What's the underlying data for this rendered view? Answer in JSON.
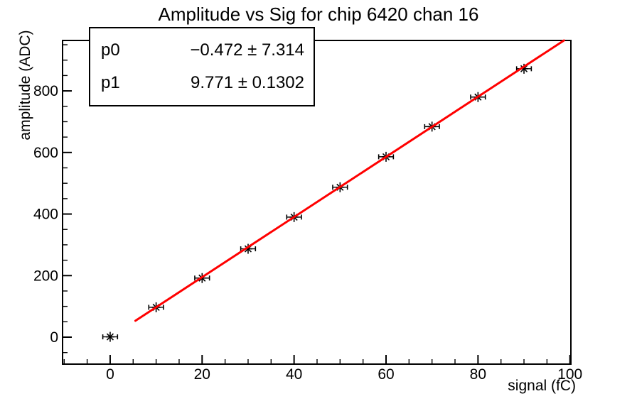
{
  "title": "Amplitude vs Sig for chip 6420 chan 16",
  "stats_box": {
    "rows": [
      {
        "param": "p0",
        "value": "−0.472 ± 7.314"
      },
      {
        "param": "p1",
        "value": "9.771 ± 0.1302"
      }
    ]
  },
  "colors": {
    "foreground": "#000000",
    "fit_line": "#ff0000",
    "background": "#ffffff"
  },
  "chart_data": {
    "type": "scatter",
    "title": "Amplitude vs Sig for chip 6420 chan 16",
    "xlabel": "signal (fC)",
    "ylabel": "amplitude (ADC)",
    "xlim": [
      -10.35,
      100.2
    ],
    "ylim": [
      -87.6,
      963.9
    ],
    "xticks": [
      0,
      20,
      40,
      60,
      80,
      100
    ],
    "yticks": [
      0,
      200,
      400,
      600,
      800
    ],
    "x_minor_step": 5,
    "y_minor_step": 50,
    "grid": false,
    "legend": "none",
    "points": {
      "marker": "asterisk",
      "color": "#000000",
      "x": [
        0,
        10,
        20,
        30,
        40,
        50,
        60,
        70,
        80,
        90
      ],
      "y": [
        1,
        97,
        192,
        287,
        390,
        487,
        586,
        684,
        780,
        872
      ],
      "xerr": 1.6,
      "yerr": 0
    },
    "fit_line": {
      "model": "p0 + p1*x",
      "p0": -0.472,
      "p0_err": 7.314,
      "p1": 9.771,
      "p1_err": 0.1302,
      "x_range": [
        5.5,
        100
      ],
      "color": "#ff0000"
    }
  }
}
